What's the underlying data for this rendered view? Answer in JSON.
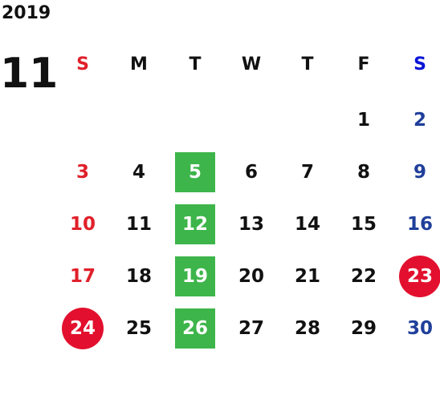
{
  "calendar": {
    "year": "2019",
    "month": "11",
    "weekdays": [
      "S",
      "M",
      "T",
      "W",
      "T",
      "F",
      "S"
    ],
    "weeks": [
      [
        "",
        "",
        "",
        "",
        "",
        "1",
        "2"
      ],
      [
        "3",
        "4",
        "5",
        "6",
        "7",
        "8",
        "9"
      ],
      [
        "10",
        "11",
        "12",
        "13",
        "14",
        "15",
        "16"
      ],
      [
        "17",
        "18",
        "19",
        "20",
        "21",
        "22",
        "23"
      ],
      [
        "24",
        "25",
        "26",
        "27",
        "28",
        "29",
        "30"
      ]
    ],
    "highlights": {
      "green_days": [
        "5",
        "12",
        "19",
        "26"
      ],
      "red_days": [
        "23",
        "24"
      ]
    },
    "colors": {
      "sunday": "#e0202a",
      "saturday": "#1f3f9a",
      "saturday_header": "#0a14d8",
      "green_highlight": "#3db54a",
      "red_highlight": "#e2102e"
    }
  }
}
